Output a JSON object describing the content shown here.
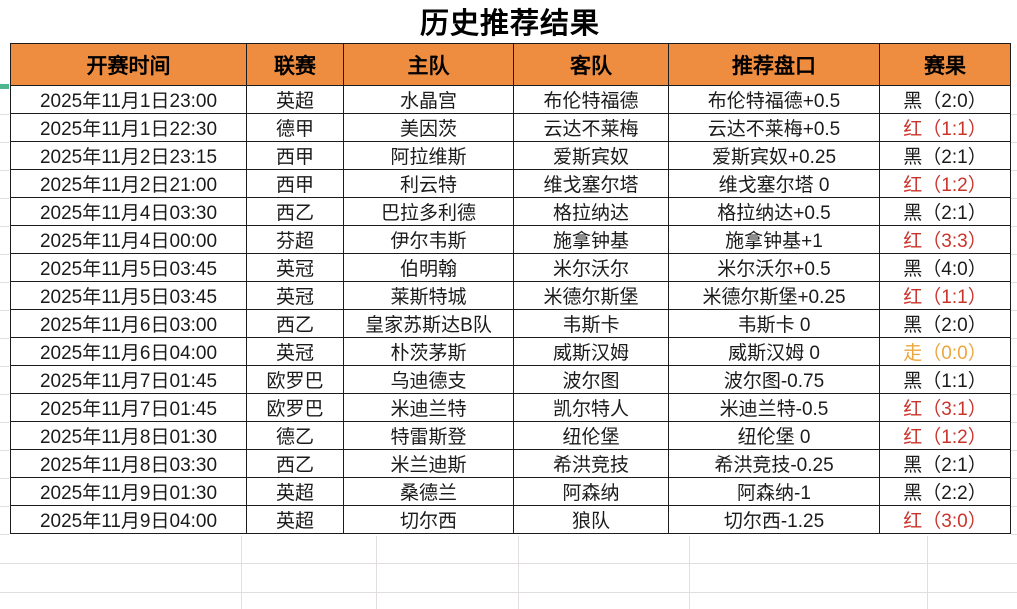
{
  "title": "历史推荐结果",
  "columns": [
    "开赛时间",
    "联赛",
    "主队",
    "客队",
    "推荐盘口",
    "赛果"
  ],
  "rows": [
    {
      "time": "2025年11月1日23:00",
      "league": "英超",
      "home": "水晶宫",
      "away": "布伦特福德",
      "handicap": "布伦特福德+0.5",
      "result": "黑（2:0）",
      "result_color": "black"
    },
    {
      "time": "2025年11月1日22:30",
      "league": "德甲",
      "home": "美因茨",
      "away": "云达不莱梅",
      "handicap": "云达不莱梅+0.5",
      "result": "红（1:1）",
      "result_color": "red"
    },
    {
      "time": "2025年11月2日23:15",
      "league": "西甲",
      "home": "阿拉维斯",
      "away": "爱斯宾奴",
      "handicap": "爱斯宾奴+0.25",
      "result": "黑（2:1）",
      "result_color": "black"
    },
    {
      "time": "2025年11月2日21:00",
      "league": "西甲",
      "home": "利云特",
      "away": "维戈塞尔塔",
      "handicap": "维戈塞尔塔 0",
      "result": "红（1:2）",
      "result_color": "red"
    },
    {
      "time": "2025年11月4日03:30",
      "league": "西乙",
      "home": "巴拉多利德",
      "away": "格拉纳达",
      "handicap": "格拉纳达+0.5",
      "result": "黑（2:1）",
      "result_color": "black"
    },
    {
      "time": "2025年11月4日00:00",
      "league": "芬超",
      "home": "伊尔韦斯",
      "away": "施拿钟基",
      "handicap": "施拿钟基+1",
      "result": "红（3:3）",
      "result_color": "red"
    },
    {
      "time": "2025年11月5日03:45",
      "league": "英冠",
      "home": "伯明翰",
      "away": "米尔沃尔",
      "handicap": "米尔沃尔+0.5",
      "result": "黑（4:0）",
      "result_color": "black"
    },
    {
      "time": "2025年11月5日03:45",
      "league": "英冠",
      "home": "莱斯特城",
      "away": "米德尔斯堡",
      "handicap": "米德尔斯堡+0.25",
      "result": "红（1:1）",
      "result_color": "red"
    },
    {
      "time": "2025年11月6日03:00",
      "league": "西乙",
      "home": "皇家苏斯达B队",
      "away": "韦斯卡",
      "handicap": "韦斯卡 0",
      "result": "黑（2:0）",
      "result_color": "black"
    },
    {
      "time": "2025年11月6日04:00",
      "league": "英冠",
      "home": "朴茨茅斯",
      "away": "威斯汉姆",
      "handicap": "威斯汉姆 0",
      "result": "走（0:0）",
      "result_color": "push"
    },
    {
      "time": "2025年11月7日01:45",
      "league": "欧罗巴",
      "home": "乌迪德支",
      "away": "波尔图",
      "handicap": "波尔图-0.75",
      "result": "黑（1:1）",
      "result_color": "black"
    },
    {
      "time": "2025年11月7日01:45",
      "league": "欧罗巴",
      "home": "米迪兰特",
      "away": "凯尔特人",
      "handicap": "米迪兰特-0.5",
      "result": "红（3:1）",
      "result_color": "red"
    },
    {
      "time": "2025年11月8日01:30",
      "league": "德乙",
      "home": "特雷斯登",
      "away": "纽伦堡",
      "handicap": "纽伦堡 0",
      "result": "红（1:2）",
      "result_color": "red"
    },
    {
      "time": "2025年11月8日03:30",
      "league": "西乙",
      "home": "米兰迪斯",
      "away": "希洪竞技",
      "handicap": "希洪竞技-0.25",
      "result": "黑（2:1）",
      "result_color": "black"
    },
    {
      "time": "2025年11月9日01:30",
      "league": "英超",
      "home": "桑德兰",
      "away": "阿森纳",
      "handicap": "阿森纳-1",
      "result": "黑（2:2）",
      "result_color": "black"
    },
    {
      "time": "2025年11月9日04:00",
      "league": "英超",
      "home": "切尔西",
      "away": "狼队",
      "handicap": "切尔西-1.25",
      "result": "红（3:0）",
      "result_color": "red"
    }
  ],
  "colors": {
    "header_bg": "#EE8C40",
    "result_black": "#1b1b1b",
    "result_red": "#C9342C",
    "result_push": "#EDA63E",
    "border": "#1c1c1c",
    "grid_faint": "#e2dede",
    "selection_mark": "#4FB68D"
  }
}
